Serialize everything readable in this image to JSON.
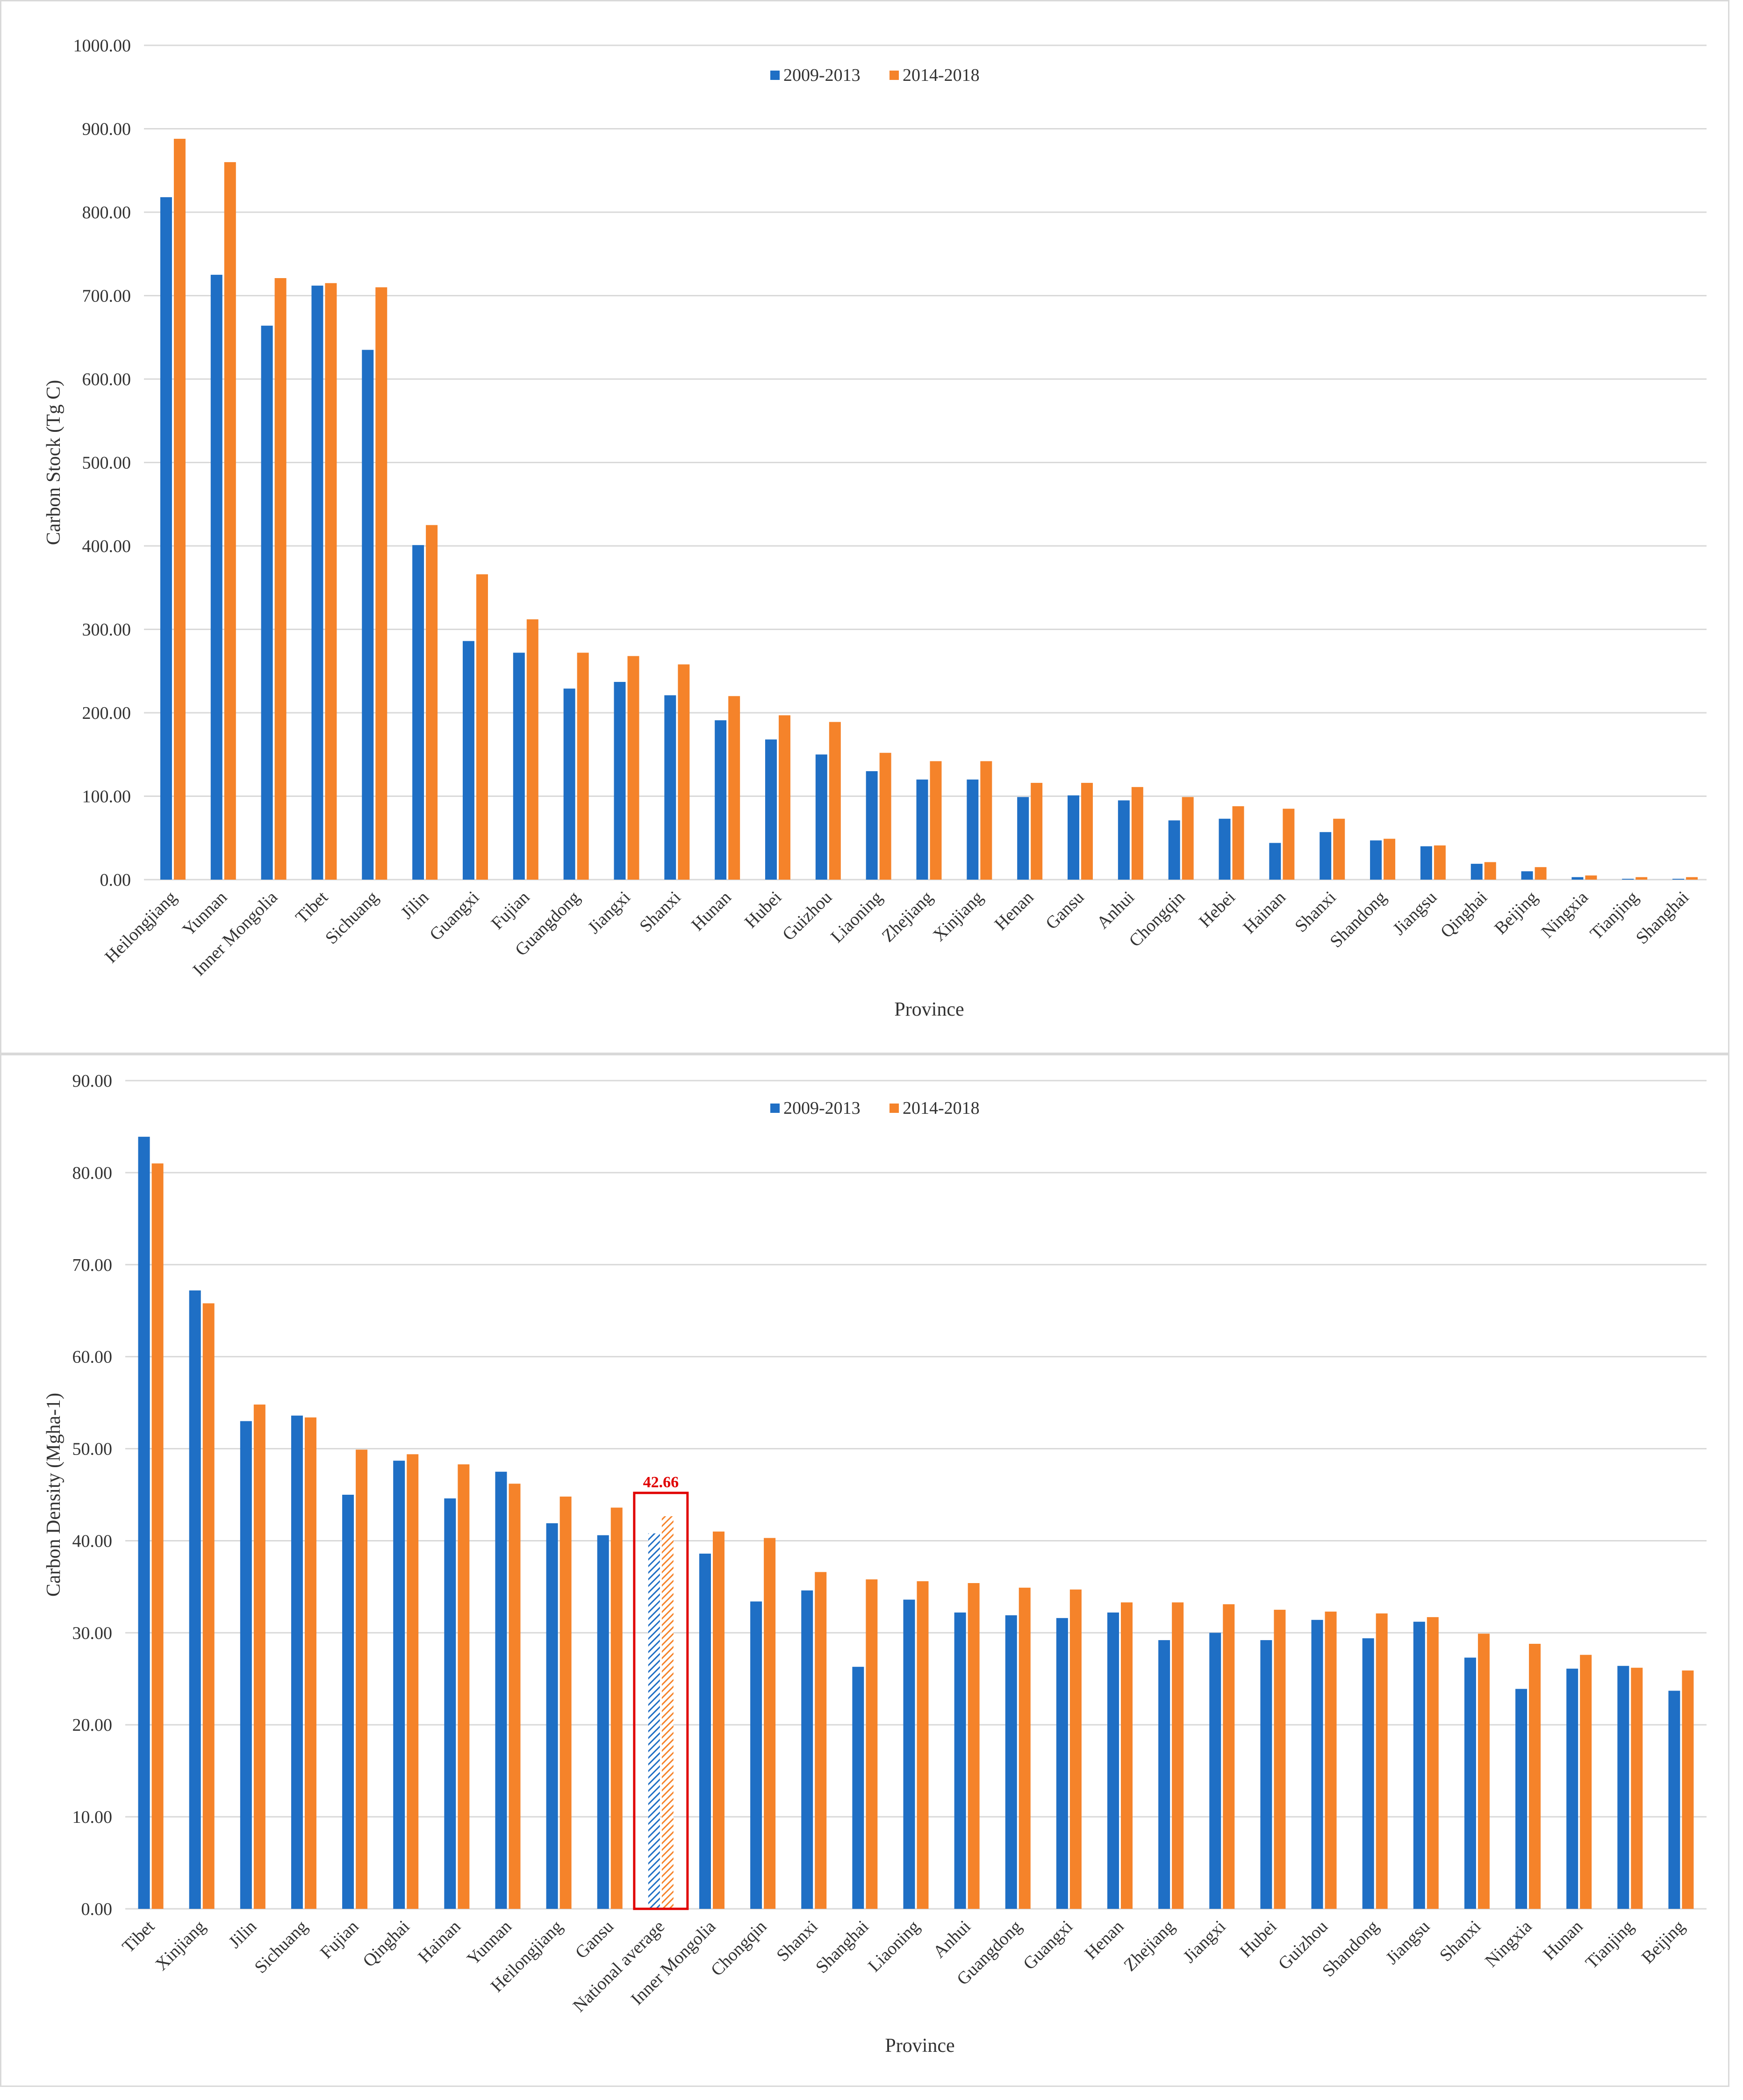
{
  "colors": {
    "series1": "#1f6fc5",
    "series2": "#f5832a",
    "grid": "#d9d9d9",
    "highlight": "#e00000"
  },
  "chart_data": [
    {
      "type": "bar",
      "title": "",
      "xlabel": "Province",
      "ylabel": "Carbon Stock (Tg C)",
      "ylim": [
        0,
        1000
      ],
      "yticks": [
        "0.00",
        "100.00",
        "200.00",
        "300.00",
        "400.00",
        "500.00",
        "600.00",
        "700.00",
        "800.00",
        "900.00",
        "1000.00"
      ],
      "legend": [
        "2009-2013",
        "2014-2018"
      ],
      "categories": [
        "Heilongjiang",
        "Yunnan",
        "Inner Mongolia",
        "Tibet",
        "Sichuang",
        "Jilin",
        "Guangxi",
        "Fujian",
        "Guangdong",
        "Jiangxi",
        "Shanxi",
        "Hunan",
        "Hubei",
        "Guizhou",
        "Liaoning",
        "Zhejiang",
        "Xinjiang",
        "Henan",
        "Gansu",
        "Anhui",
        "Chongqin",
        "Hebei",
        "Hainan",
        "Shanxi",
        "Shandong",
        "Jiangsu",
        "Qinghai",
        "Beijing",
        "Ningxia",
        "Tianjing",
        "Shanghai"
      ],
      "series": [
        {
          "name": "2009-2013",
          "values": [
            818,
            725,
            664,
            712,
            635,
            401,
            286,
            272,
            229,
            237,
            221,
            191,
            168,
            150,
            130,
            120,
            120,
            99,
            101,
            95,
            71,
            73,
            44,
            57,
            47,
            40,
            19,
            10,
            3,
            1,
            1
          ]
        },
        {
          "name": "2014-2018",
          "values": [
            888,
            860,
            721,
            715,
            710,
            425,
            366,
            312,
            272,
            268,
            258,
            220,
            197,
            189,
            152,
            142,
            142,
            116,
            116,
            111,
            99,
            88,
            85,
            73,
            49,
            41,
            21,
            15,
            5,
            3,
            3
          ]
        }
      ]
    },
    {
      "type": "bar",
      "title": "",
      "xlabel": "Province",
      "ylabel": "Carbon Density (Mgha-1)",
      "ylim": [
        0,
        90
      ],
      "yticks": [
        "0.00",
        "10.00",
        "20.00",
        "30.00",
        "40.00",
        "50.00",
        "60.00",
        "70.00",
        "80.00",
        "90.00"
      ],
      "legend": [
        "2009-2013",
        "2014-2018"
      ],
      "categories": [
        "Tibet",
        "Xinjiang",
        "Jilin",
        "Sichuang",
        "Fujian",
        "Qinghai",
        "Hainan",
        "Yunnan",
        "Heilongjiang",
        "Gansu",
        "National average",
        "Inner Mongolia",
        "Chongqin",
        "Shanxi",
        "Shanghai",
        "Liaoning",
        "Anhui",
        "Guangdong",
        "Guangxi",
        "Henan",
        "Zhejiang",
        "Jiangxi",
        "Hubei",
        "Guizhou",
        "Shandong",
        "Jiangsu",
        "Shanxi",
        "Ningxia",
        "Hunan",
        "Tianjing",
        "Beijing"
      ],
      "highlight_category": "National average",
      "annotation": "42.66",
      "series": [
        {
          "name": "2009-2013",
          "values": [
            83.9,
            67.2,
            53.0,
            53.6,
            45.0,
            48.7,
            44.6,
            47.5,
            41.9,
            40.6,
            40.8,
            38.6,
            33.4,
            34.6,
            26.3,
            33.6,
            32.2,
            31.9,
            31.6,
            32.2,
            29.2,
            30.0,
            29.2,
            31.4,
            29.4,
            31.2,
            27.3,
            23.9,
            26.1,
            26.4,
            23.7
          ]
        },
        {
          "name": "2014-2018",
          "values": [
            81.0,
            65.8,
            54.8,
            53.4,
            49.9,
            49.4,
            48.3,
            46.2,
            44.8,
            43.6,
            42.66,
            41.0,
            40.3,
            36.6,
            35.8,
            35.6,
            35.4,
            34.9,
            34.7,
            33.3,
            33.3,
            33.1,
            32.5,
            32.3,
            32.1,
            31.7,
            29.9,
            28.8,
            27.6,
            26.2,
            25.9
          ]
        }
      ]
    }
  ]
}
